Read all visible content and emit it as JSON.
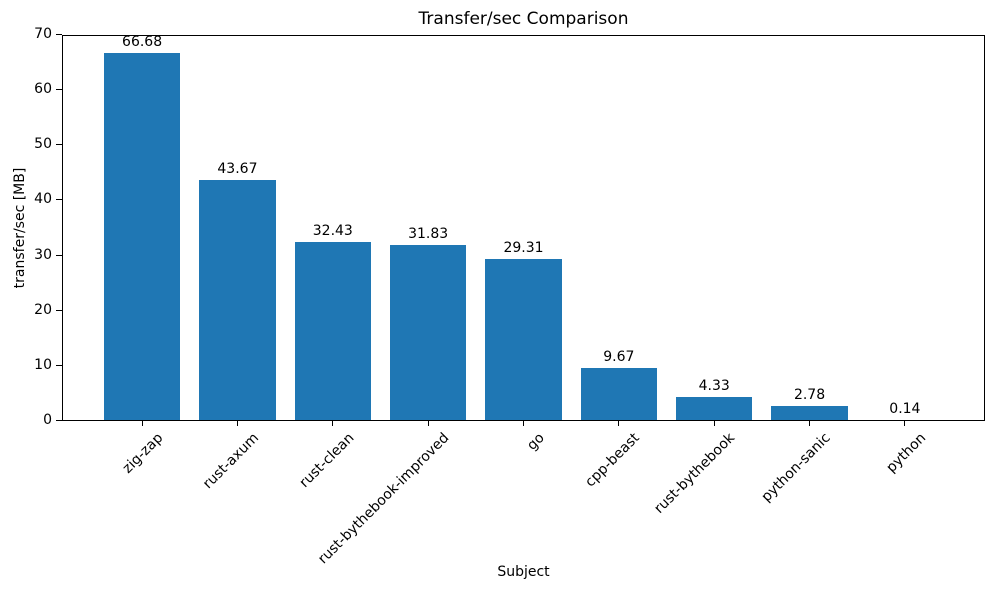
{
  "chart_data": {
    "type": "bar",
    "title": "Transfer/sec Comparison",
    "xlabel": "Subject",
    "ylabel": "transfer/sec [MB]",
    "categories": [
      "zig-zap",
      "rust-axum",
      "rust-clean",
      "rust-bythebook-improved",
      "go",
      "cpp-beast",
      "rust-bythebook",
      "python-sanic",
      "python"
    ],
    "values": [
      66.68,
      43.67,
      32.43,
      31.83,
      29.31,
      9.67,
      4.33,
      2.78,
      0.14
    ],
    "value_labels": [
      "66.68",
      "43.67",
      "32.43",
      "31.83",
      "29.31",
      "9.67",
      "4.33",
      "2.78",
      "0.14"
    ],
    "ylim": [
      0,
      70
    ],
    "yticks": [
      0,
      10,
      20,
      30,
      40,
      50,
      60,
      70
    ],
    "bar_color": "#1f77b4",
    "grid": false,
    "legend_position": "none",
    "x_tick_rotation_deg": 45
  }
}
